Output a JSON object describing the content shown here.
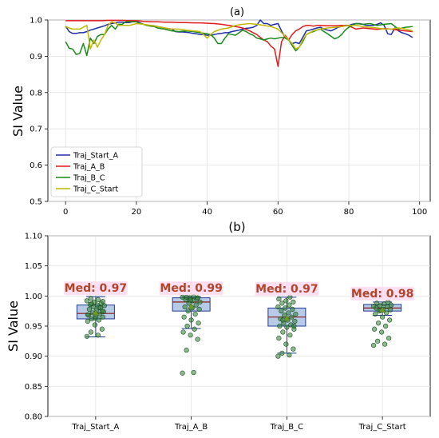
{
  "chart_data": [
    {
      "type": "line",
      "title": "(a)",
      "xlabel": "",
      "ylabel": "SI Value",
      "xlim": [
        -5,
        103
      ],
      "ylim": [
        0.5,
        1.0
      ],
      "xticks": [
        "0",
        "20",
        "40",
        "60",
        "80",
        "100"
      ],
      "yticks": [
        "0.5",
        "0.6",
        "0.7",
        "0.8",
        "0.9",
        "1.0"
      ],
      "xtick_values": [
        0,
        20,
        40,
        60,
        80,
        100
      ],
      "ytick_values": [
        0.5,
        0.6,
        0.7,
        0.8,
        0.9,
        1.0
      ],
      "grid": true,
      "legend_position": "lower-left",
      "series": [
        {
          "name": "Traj_Start_A",
          "color": "#1f2fa8",
          "x": [
            0,
            1,
            2,
            3,
            4,
            5,
            6,
            7,
            8,
            9,
            10,
            11,
            12,
            13,
            14,
            15,
            16,
            17,
            18,
            19,
            20,
            21,
            22,
            23,
            24,
            25,
            26,
            27,
            28,
            29,
            30,
            31,
            32,
            33,
            34,
            35,
            36,
            37,
            38,
            39,
            40,
            41,
            42,
            43,
            44,
            45,
            46,
            47,
            48,
            49,
            50,
            51,
            52,
            53,
            54,
            55,
            56,
            57,
            58,
            59,
            60,
            61,
            62,
            63,
            64,
            65,
            66,
            67,
            68,
            69,
            70,
            71,
            72,
            73,
            74,
            75,
            76,
            77,
            78,
            79,
            80,
            81,
            82,
            83,
            84,
            85,
            86,
            87,
            88,
            89,
            90,
            91,
            92,
            93,
            94,
            95,
            96,
            97,
            98
          ],
          "y": [
            0.983,
            0.968,
            0.963,
            0.963,
            0.965,
            0.965,
            0.968,
            0.972,
            0.975,
            0.978,
            0.981,
            0.984,
            0.988,
            0.99,
            0.992,
            0.994,
            0.994,
            0.993,
            0.993,
            0.995,
            0.996,
            0.992,
            0.988,
            0.985,
            0.985,
            0.984,
            0.982,
            0.98,
            0.978,
            0.976,
            0.975,
            0.968,
            0.967,
            0.967,
            0.966,
            0.965,
            0.963,
            0.962,
            0.96,
            0.96,
            0.958,
            0.958,
            0.96,
            0.962,
            0.963,
            0.965,
            0.965,
            0.968,
            0.97,
            0.972,
            0.975,
            0.977,
            0.978,
            0.98,
            0.985,
            1.0,
            0.99,
            0.99,
            0.985,
            0.988,
            0.99,
            0.97,
            0.952,
            0.945,
            0.935,
            0.938,
            0.935,
            0.952,
            0.97,
            0.972,
            0.975,
            0.978,
            0.98,
            0.975,
            0.972,
            0.97,
            0.975,
            0.98,
            0.982,
            0.985,
            0.985,
            0.988,
            0.99,
            0.99,
            0.988,
            0.985,
            0.985,
            0.985,
            0.988,
            0.992,
            0.985,
            0.962,
            0.96,
            0.978,
            0.97,
            0.965,
            0.962,
            0.958,
            0.952
          ]
        },
        {
          "name": "Traj_A_B",
          "color": "#e31a1c",
          "x": [
            0,
            2,
            4,
            6,
            8,
            10,
            12,
            14,
            16,
            18,
            20,
            22,
            24,
            26,
            28,
            30,
            32,
            34,
            36,
            38,
            40,
            42,
            44,
            46,
            48,
            50,
            52,
            53,
            54,
            55,
            56,
            57,
            58,
            59,
            60,
            61,
            62,
            63,
            64,
            65,
            66,
            67,
            68,
            69,
            70,
            71,
            72,
            74,
            76,
            78,
            80,
            82,
            84,
            86,
            88,
            90,
            92,
            94,
            96,
            98
          ],
          "y": [
            0.998,
            0.998,
            0.998,
            0.998,
            0.998,
            0.998,
            0.999,
            0.999,
            0.999,
            0.998,
            0.998,
            0.996,
            0.995,
            0.995,
            0.994,
            0.994,
            0.993,
            0.993,
            0.992,
            0.992,
            0.991,
            0.99,
            0.988,
            0.985,
            0.982,
            0.978,
            0.97,
            0.965,
            0.96,
            0.952,
            0.945,
            0.94,
            0.928,
            0.92,
            0.872,
            0.94,
            0.958,
            0.945,
            0.96,
            0.97,
            0.975,
            0.982,
            0.985,
            0.985,
            0.983,
            0.985,
            0.985,
            0.984,
            0.984,
            0.985,
            0.984,
            0.975,
            0.978,
            0.976,
            0.974,
            0.976,
            0.975,
            0.972,
            0.97,
            0.968
          ]
        },
        {
          "name": "Traj_B_C",
          "color": "#1a8a1a",
          "x": [
            0,
            1,
            2,
            3,
            4,
            5,
            6,
            7,
            8,
            9,
            10,
            11,
            12,
            13,
            14,
            15,
            16,
            17,
            18,
            19,
            20,
            21,
            22,
            23,
            24,
            25,
            26,
            27,
            28,
            29,
            30,
            32,
            34,
            36,
            38,
            40,
            41,
            42,
            43,
            44,
            45,
            46,
            47,
            48,
            49,
            50,
            51,
            52,
            53,
            54,
            55,
            56,
            57,
            58,
            59,
            60,
            61,
            62,
            63,
            64,
            65,
            66,
            67,
            68,
            69,
            70,
            71,
            72,
            73,
            74,
            75,
            76,
            77,
            78,
            79,
            80,
            81,
            82,
            84,
            86,
            88,
            90,
            92,
            94,
            96,
            98
          ],
          "y": [
            0.94,
            0.922,
            0.92,
            0.905,
            0.908,
            0.935,
            0.902,
            0.95,
            0.935,
            0.955,
            0.96,
            0.96,
            0.975,
            0.985,
            0.975,
            0.988,
            0.988,
            0.995,
            0.995,
            0.995,
            0.995,
            0.99,
            0.988,
            0.985,
            0.983,
            0.982,
            0.978,
            0.976,
            0.975,
            0.972,
            0.97,
            0.968,
            0.97,
            0.968,
            0.965,
            0.962,
            0.96,
            0.95,
            0.935,
            0.935,
            0.95,
            0.962,
            0.96,
            0.958,
            0.965,
            0.972,
            0.968,
            0.962,
            0.958,
            0.95,
            0.948,
            0.945,
            0.948,
            0.95,
            0.948,
            0.95,
            0.952,
            0.95,
            0.945,
            0.93,
            0.915,
            0.925,
            0.94,
            0.96,
            0.965,
            0.968,
            0.972,
            0.975,
            0.968,
            0.962,
            0.955,
            0.948,
            0.952,
            0.96,
            0.972,
            0.98,
            0.985,
            0.99,
            0.988,
            0.99,
            0.985,
            0.988,
            0.99,
            0.975,
            0.98,
            0.982
          ]
        },
        {
          "name": "Traj_C_Start",
          "color": "#c2b800",
          "x": [
            0,
            1,
            2,
            3,
            4,
            5,
            6,
            7,
            8,
            9,
            10,
            11,
            12,
            13,
            14,
            15,
            16,
            17,
            18,
            20,
            22,
            24,
            26,
            28,
            30,
            32,
            34,
            36,
            38,
            40,
            41,
            42,
            44,
            46,
            48,
            50,
            52,
            54,
            56,
            58,
            60,
            62,
            64,
            65,
            66,
            67,
            68,
            70,
            72,
            74,
            76,
            78,
            80,
            82,
            84,
            86,
            88,
            90,
            92,
            94,
            96,
            98
          ],
          "y": [
            0.982,
            0.978,
            0.975,
            0.975,
            0.975,
            0.98,
            0.985,
            0.92,
            0.945,
            0.925,
            0.945,
            0.96,
            0.985,
            0.995,
            0.992,
            0.985,
            0.985,
            0.985,
            0.985,
            0.99,
            0.988,
            0.985,
            0.982,
            0.978,
            0.975,
            0.975,
            0.972,
            0.97,
            0.968,
            0.95,
            0.96,
            0.968,
            0.975,
            0.978,
            0.985,
            0.988,
            0.99,
            0.988,
            0.985,
            0.982,
            0.975,
            0.955,
            0.935,
            0.92,
            0.925,
            0.945,
            0.96,
            0.97,
            0.975,
            0.978,
            0.98,
            0.982,
            0.985,
            0.985,
            0.982,
            0.98,
            0.978,
            0.975,
            0.975,
            0.978,
            0.975,
            0.97
          ]
        }
      ]
    },
    {
      "type": "box",
      "title": "(b)",
      "xlabel": "",
      "ylabel": "SI Value",
      "ylim": [
        0.8,
        1.1
      ],
      "yticks": [
        "0.80",
        "0.85",
        "0.90",
        "0.95",
        "1.00",
        "1.05",
        "1.10"
      ],
      "ytick_values": [
        0.8,
        0.85,
        0.9,
        0.95,
        1.0,
        1.05,
        1.1
      ],
      "categories": [
        "Traj_Start_A",
        "Traj_A_B",
        "Traj_B_C",
        "Traj_C_Start"
      ],
      "grid": true,
      "boxes": [
        {
          "category": "Traj_Start_A",
          "q1": 0.962,
          "median": 0.971,
          "q3": 0.985,
          "whisker_low": 0.932,
          "whisker_high": 0.999,
          "mean": 0.972,
          "label": "Med: 0.97",
          "points": [
            0.933,
            0.935,
            0.94,
            0.945,
            0.952,
            0.958,
            0.96,
            0.962,
            0.965,
            0.966,
            0.968,
            0.97,
            0.972,
            0.974,
            0.976,
            0.978,
            0.98,
            0.982,
            0.984,
            0.985,
            0.986,
            0.988,
            0.99,
            0.992,
            0.994,
            0.996,
            0.975,
            0.963,
            0.969,
            0.981,
            0.987,
            0.991
          ]
        },
        {
          "category": "Traj_A_B",
          "q1": 0.975,
          "median": 0.99,
          "q3": 0.997,
          "whisker_low": 0.946,
          "whisker_high": 0.999,
          "mean": 0.983,
          "label": "Med: 0.99",
          "points": [
            0.872,
            0.873,
            0.91,
            0.928,
            0.935,
            0.94,
            0.945,
            0.95,
            0.955,
            0.96,
            0.965,
            0.97,
            0.975,
            0.978,
            0.98,
            0.982,
            0.985,
            0.988,
            0.99,
            0.992,
            0.994,
            0.996,
            0.997,
            0.998,
            0.999,
            0.998,
            0.997,
            0.993
          ]
        },
        {
          "category": "Traj_B_C",
          "q1": 0.95,
          "median": 0.965,
          "q3": 0.98,
          "whisker_low": 0.905,
          "whisker_high": 0.998,
          "mean": 0.963,
          "label": "Med: 0.97",
          "points": [
            0.9,
            0.902,
            0.905,
            0.912,
            0.92,
            0.93,
            0.935,
            0.94,
            0.945,
            0.948,
            0.95,
            0.952,
            0.955,
            0.958,
            0.96,
            0.962,
            0.965,
            0.968,
            0.97,
            0.972,
            0.975,
            0.978,
            0.98,
            0.982,
            0.985,
            0.988,
            0.99,
            0.992,
            0.995,
            0.998,
            0.96,
            0.95
          ]
        },
        {
          "category": "Traj_C_Start",
          "q1": 0.975,
          "median": 0.98,
          "q3": 0.986,
          "whisker_low": 0.968,
          "whisker_high": 0.99,
          "mean": 0.977,
          "label": "Med: 0.98",
          "points": [
            0.918,
            0.92,
            0.925,
            0.93,
            0.94,
            0.945,
            0.95,
            0.955,
            0.96,
            0.965,
            0.97,
            0.972,
            0.975,
            0.977,
            0.978,
            0.98,
            0.982,
            0.984,
            0.985,
            0.987,
            0.988,
            0.99,
            0.976,
            0.983
          ]
        }
      ]
    }
  ]
}
